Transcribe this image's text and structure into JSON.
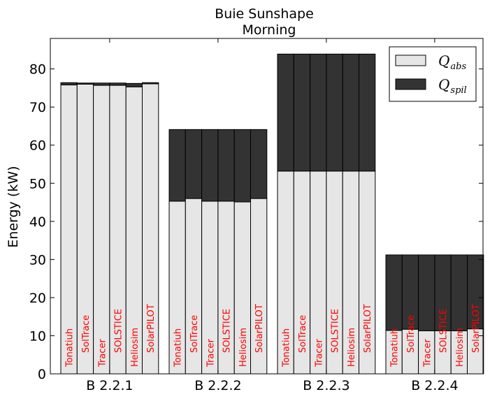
{
  "chart_data": {
    "type": "bar",
    "title": "Buie Sunshape",
    "subtitle": "Morning",
    "ylabel": "Energy (kW)",
    "xlabel": "",
    "ylim": [
      0,
      88
    ],
    "yticks": [
      0,
      10,
      20,
      30,
      40,
      50,
      60,
      70,
      80
    ],
    "categories": [
      "B 2.2.1",
      "B 2.2.2",
      "B 2.2.3",
      "B 2.2.4"
    ],
    "tools": [
      "Tonatiuh",
      "SolTrace",
      "Tracer",
      "SOLSTICE",
      "Heliosim",
      "SolarPILOT"
    ],
    "legend_position": "top-right",
    "series": [
      {
        "name": "Q_abs",
        "legend_main": "Q",
        "legend_sub": "abs",
        "color": "#e6e6e6",
        "values": [
          [
            75.8,
            76.0,
            75.7,
            75.7,
            75.3,
            76.1
          ],
          [
            45.3,
            46.0,
            45.3,
            45.3,
            45.1,
            46.0
          ],
          [
            53.2,
            53.2,
            53.2,
            53.2,
            53.2,
            53.2
          ],
          [
            11.4,
            11.7,
            11.3,
            11.3,
            11.3,
            11.8
          ]
        ]
      },
      {
        "name": "Q_spil",
        "legend_main": "Q",
        "legend_sub": "spil",
        "color": "#333333",
        "values": [
          [
            0.6,
            0.3,
            0.6,
            0.6,
            0.9,
            0.3
          ],
          [
            18.8,
            18.1,
            18.8,
            18.8,
            19.0,
            18.1
          ],
          [
            30.7,
            30.7,
            30.7,
            30.7,
            30.7,
            30.7
          ],
          [
            19.8,
            19.5,
            19.9,
            19.9,
            19.9,
            19.4
          ]
        ]
      }
    ]
  }
}
